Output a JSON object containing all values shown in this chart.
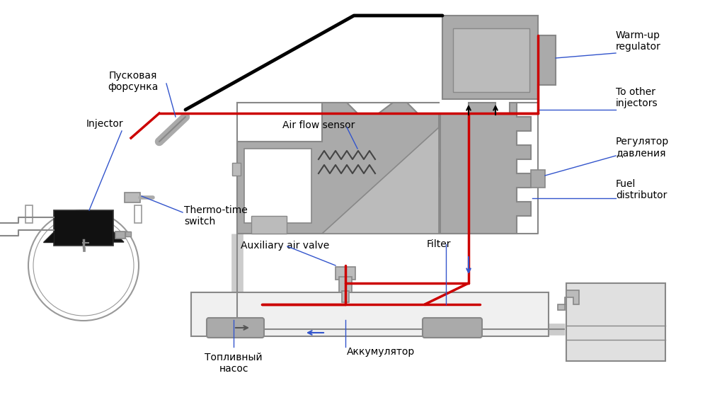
{
  "bg": "#ffffff",
  "black": "#000000",
  "gray1": "#aaaaaa",
  "gray2": "#888888",
  "gray3": "#bbbbbb",
  "gray4": "#cccccc",
  "gray5": "#999999",
  "red": "#cc0000",
  "blue": "#3355cc",
  "darkgray": "#555555",
  "labels": {
    "injector": "Injector",
    "pusk": "Пусковая\nфорсунка",
    "thermo": "Thermo-time\nswitch",
    "airflow": "Air flow sensor",
    "aux_air": "Auxiliary air valve",
    "filter": "Filter",
    "warmup": "Warm-up\nregulator",
    "to_other": "To other\ninjectors",
    "reg_davl": "Регулятор\nдавления",
    "fuel_dist": "Fuel\ndistributor",
    "top_nasos": "Топливный\nнасос",
    "akkum": "Аккумулятор"
  }
}
